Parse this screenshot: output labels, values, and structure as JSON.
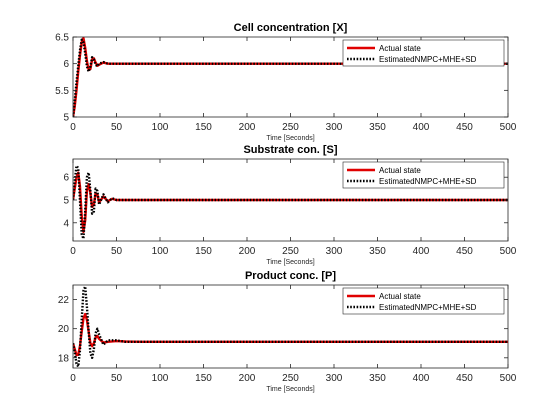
{
  "chart_data": [
    {
      "type": "line",
      "title": "Cell concentration [X]",
      "xlabel": "Time [Seconds]",
      "ylabel": "",
      "xlim": [
        0,
        500
      ],
      "ylim": [
        5,
        6.5
      ],
      "xticks": [
        0,
        50,
        100,
        150,
        200,
        250,
        300,
        350,
        400,
        450,
        500
      ],
      "yticks": [
        5,
        5.5,
        6,
        6.5
      ],
      "ytick_labels": [
        "5",
        "5.5",
        "6",
        "6.5"
      ],
      "legend_position": "top-right",
      "series": [
        {
          "name": "Actual state",
          "color": "#e00000",
          "style": "solid",
          "x": [
            0,
            2,
            4,
            6,
            8,
            10,
            12,
            14,
            16,
            18,
            20,
            22,
            24,
            26,
            28,
            30,
            35,
            40,
            50,
            60,
            100,
            200,
            300,
            400,
            500
          ],
          "y": [
            5.0,
            5.2,
            5.5,
            5.85,
            6.15,
            6.4,
            6.48,
            6.3,
            6.05,
            5.88,
            5.9,
            6.08,
            6.1,
            6.02,
            5.96,
            5.98,
            6.02,
            6.0,
            6.0,
            6.0,
            6.0,
            6.0,
            6.0,
            6.0,
            6.0
          ]
        },
        {
          "name": "EstimatedNMPC+MHE+SD",
          "color": "#000000",
          "style": "dotted",
          "x": [
            0,
            2,
            4,
            6,
            8,
            10,
            12,
            14,
            16,
            18,
            20,
            22,
            24,
            26,
            28,
            30,
            35,
            40,
            50,
            60,
            100,
            200,
            300,
            400,
            500
          ],
          "y": [
            5.0,
            5.3,
            5.65,
            5.95,
            6.25,
            6.45,
            6.4,
            6.2,
            5.95,
            5.85,
            5.95,
            6.12,
            6.08,
            5.98,
            5.95,
            6.0,
            6.03,
            6.0,
            6.0,
            6.0,
            6.0,
            6.0,
            6.0,
            6.0,
            6.0
          ]
        }
      ]
    },
    {
      "type": "line",
      "title": "Substrate con. [S]",
      "xlabel": "Time [Seconds]",
      "ylabel": "",
      "xlim": [
        0,
        500
      ],
      "ylim": [
        3.2,
        6.8
      ],
      "xticks": [
        0,
        50,
        100,
        150,
        200,
        250,
        300,
        350,
        400,
        450,
        500
      ],
      "yticks": [
        4,
        5,
        6
      ],
      "ytick_labels": [
        "4",
        "5",
        "6"
      ],
      "legend_position": "top-right",
      "series": [
        {
          "name": "Actual state",
          "color": "#e00000",
          "style": "solid",
          "x": [
            0,
            2,
            4,
            6,
            8,
            10,
            12,
            14,
            16,
            18,
            20,
            22,
            24,
            26,
            28,
            30,
            35,
            40,
            45,
            50,
            60,
            100,
            200,
            300,
            400,
            500
          ],
          "y": [
            5.0,
            5.5,
            6.0,
            6.2,
            5.6,
            4.3,
            3.6,
            4.1,
            5.4,
            5.7,
            5.3,
            4.7,
            4.8,
            5.3,
            5.25,
            4.9,
            5.15,
            4.95,
            5.05,
            5.0,
            5.0,
            5.0,
            5.0,
            5.0,
            5.0,
            5.0
          ]
        },
        {
          "name": "EstimatedNMPC+MHE+SD",
          "color": "#000000",
          "style": "dotted",
          "x": [
            0,
            2,
            4,
            6,
            8,
            10,
            12,
            14,
            16,
            18,
            20,
            22,
            24,
            26,
            28,
            30,
            35,
            40,
            45,
            50,
            60,
            100,
            200,
            300,
            400,
            500
          ],
          "y": [
            5.0,
            5.8,
            6.5,
            6.4,
            5.0,
            3.5,
            3.3,
            4.5,
            6.0,
            6.2,
            5.4,
            4.4,
            4.5,
            5.5,
            5.4,
            4.8,
            5.25,
            4.9,
            5.08,
            5.0,
            5.0,
            5.0,
            5.0,
            5.0,
            5.0,
            5.0
          ]
        }
      ]
    },
    {
      "type": "line",
      "title": "Product conc. [P]",
      "xlabel": "Time [Seconds]",
      "ylabel": "",
      "xlim": [
        0,
        500
      ],
      "ylim": [
        17.3,
        23.0
      ],
      "xticks": [
        0,
        50,
        100,
        150,
        200,
        250,
        300,
        350,
        400,
        450,
        500
      ],
      "yticks": [
        18,
        20,
        22
      ],
      "ytick_labels": [
        "18",
        "20",
        "22"
      ],
      "legend_position": "top-right",
      "series": [
        {
          "name": "Actual state",
          "color": "#e00000",
          "style": "solid",
          "x": [
            0,
            2,
            4,
            6,
            8,
            10,
            12,
            14,
            16,
            18,
            20,
            22,
            24,
            26,
            28,
            30,
            35,
            40,
            50,
            60,
            80,
            100,
            200,
            300,
            400,
            500
          ],
          "y": [
            19.0,
            18.6,
            18.2,
            18.2,
            18.8,
            19.8,
            20.7,
            21.0,
            20.6,
            19.8,
            19.0,
            18.8,
            19.0,
            19.4,
            19.5,
            19.3,
            19.05,
            19.1,
            19.15,
            19.12,
            19.1,
            19.1,
            19.1,
            19.1,
            19.1,
            19.1
          ]
        },
        {
          "name": "EstimatedNMPC+MHE+SD",
          "color": "#000000",
          "style": "dotted",
          "x": [
            0,
            2,
            4,
            6,
            8,
            10,
            12,
            14,
            16,
            18,
            20,
            22,
            24,
            26,
            28,
            30,
            35,
            40,
            50,
            60,
            80,
            100,
            200,
            300,
            400,
            500
          ],
          "y": [
            19.0,
            18.4,
            17.6,
            17.4,
            18.5,
            20.6,
            22.6,
            22.9,
            21.5,
            19.8,
            18.3,
            18.0,
            18.6,
            19.7,
            20.0,
            19.6,
            18.9,
            19.2,
            19.2,
            19.1,
            19.1,
            19.1,
            19.1,
            19.1,
            19.1,
            19.1
          ]
        }
      ]
    }
  ]
}
